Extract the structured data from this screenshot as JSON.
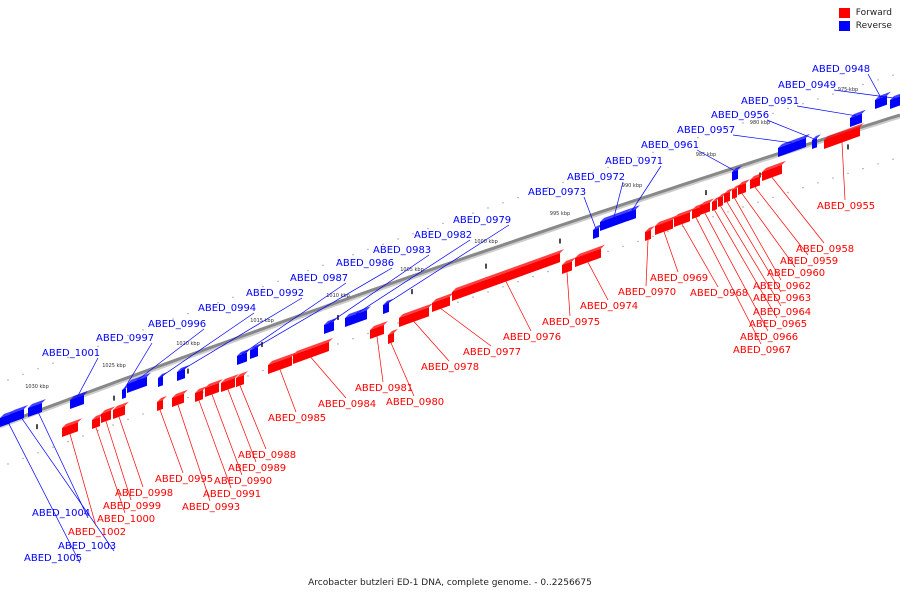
{
  "caption": "Arcobacter butzleri ED-1 DNA, complete genome. - 0..2256675",
  "legend": [
    {
      "label": "Forward",
      "color": "#ff0000"
    },
    {
      "label": "Reverse",
      "color": "#0000ff"
    }
  ],
  "colors": {
    "forward": "#ff0000",
    "reverse": "#0000ff",
    "backbone": "#888888"
  },
  "ticks": [
    {
      "label": "975 kbp",
      "kbp": 975
    },
    {
      "label": "980 kbp",
      "kbp": 980
    },
    {
      "label": "985 kbp",
      "kbp": 985
    },
    {
      "label": "990 kbp",
      "kbp": 990
    },
    {
      "label": "995 kbp",
      "kbp": 995
    },
    {
      "label": "1000 kbp",
      "kbp": 1000
    },
    {
      "label": "1005 kbp",
      "kbp": 1005
    },
    {
      "label": "1010 kbp",
      "kbp": 1010
    },
    {
      "label": "1015 kbp",
      "kbp": 1015
    },
    {
      "label": "1020 kbp",
      "kbp": 1020
    },
    {
      "label": "1025 kbp",
      "kbp": 1025
    },
    {
      "label": "1030 kbp",
      "kbp": 1030
    }
  ],
  "genes": [
    {
      "id": "ABED_0948",
      "strand": "reverse"
    },
    {
      "id": "ABED_0949",
      "strand": "reverse"
    },
    {
      "id": "ABED_0951",
      "strand": "reverse"
    },
    {
      "id": "ABED_0956",
      "strand": "reverse"
    },
    {
      "id": "ABED_0957",
      "strand": "reverse"
    },
    {
      "id": "ABED_0961",
      "strand": "reverse"
    },
    {
      "id": "ABED_0971",
      "strand": "reverse"
    },
    {
      "id": "ABED_0972",
      "strand": "reverse"
    },
    {
      "id": "ABED_0973",
      "strand": "reverse"
    },
    {
      "id": "ABED_0979",
      "strand": "reverse"
    },
    {
      "id": "ABED_0982",
      "strand": "reverse"
    },
    {
      "id": "ABED_0983",
      "strand": "reverse"
    },
    {
      "id": "ABED_0986",
      "strand": "reverse"
    },
    {
      "id": "ABED_0987",
      "strand": "reverse"
    },
    {
      "id": "ABED_0992",
      "strand": "reverse"
    },
    {
      "id": "ABED_0994",
      "strand": "reverse"
    },
    {
      "id": "ABED_0996",
      "strand": "reverse"
    },
    {
      "id": "ABED_0997",
      "strand": "reverse"
    },
    {
      "id": "ABED_1001",
      "strand": "reverse"
    },
    {
      "id": "ABED_1004",
      "strand": "reverse"
    },
    {
      "id": "ABED_1003",
      "strand": "reverse"
    },
    {
      "id": "ABED_1005",
      "strand": "reverse"
    },
    {
      "id": "ABED_0955",
      "strand": "forward"
    },
    {
      "id": "ABED_0958",
      "strand": "forward"
    },
    {
      "id": "ABED_0959",
      "strand": "forward"
    },
    {
      "id": "ABED_0960",
      "strand": "forward"
    },
    {
      "id": "ABED_0962",
      "strand": "forward"
    },
    {
      "id": "ABED_0963",
      "strand": "forward"
    },
    {
      "id": "ABED_0964",
      "strand": "forward"
    },
    {
      "id": "ABED_0965",
      "strand": "forward"
    },
    {
      "id": "ABED_0966",
      "strand": "forward"
    },
    {
      "id": "ABED_0967",
      "strand": "forward"
    },
    {
      "id": "ABED_0968",
      "strand": "forward"
    },
    {
      "id": "ABED_0969",
      "strand": "forward"
    },
    {
      "id": "ABED_0970",
      "strand": "forward"
    },
    {
      "id": "ABED_0974",
      "strand": "forward"
    },
    {
      "id": "ABED_0975",
      "strand": "forward"
    },
    {
      "id": "ABED_0976",
      "strand": "forward"
    },
    {
      "id": "ABED_0977",
      "strand": "forward"
    },
    {
      "id": "ABED_0978",
      "strand": "forward"
    },
    {
      "id": "ABED_0980",
      "strand": "forward"
    },
    {
      "id": "ABED_0981",
      "strand": "forward"
    },
    {
      "id": "ABED_0984",
      "strand": "forward"
    },
    {
      "id": "ABED_0985",
      "strand": "forward"
    },
    {
      "id": "ABED_0988",
      "strand": "forward"
    },
    {
      "id": "ABED_0989",
      "strand": "forward"
    },
    {
      "id": "ABED_0990",
      "strand": "forward"
    },
    {
      "id": "ABED_0991",
      "strand": "forward"
    },
    {
      "id": "ABED_0993",
      "strand": "forward"
    },
    {
      "id": "ABED_0995",
      "strand": "forward"
    },
    {
      "id": "ABED_0998",
      "strand": "forward"
    },
    {
      "id": "ABED_0999",
      "strand": "forward"
    },
    {
      "id": "ABED_1000",
      "strand": "forward"
    },
    {
      "id": "ABED_1002",
      "strand": "forward"
    }
  ]
}
